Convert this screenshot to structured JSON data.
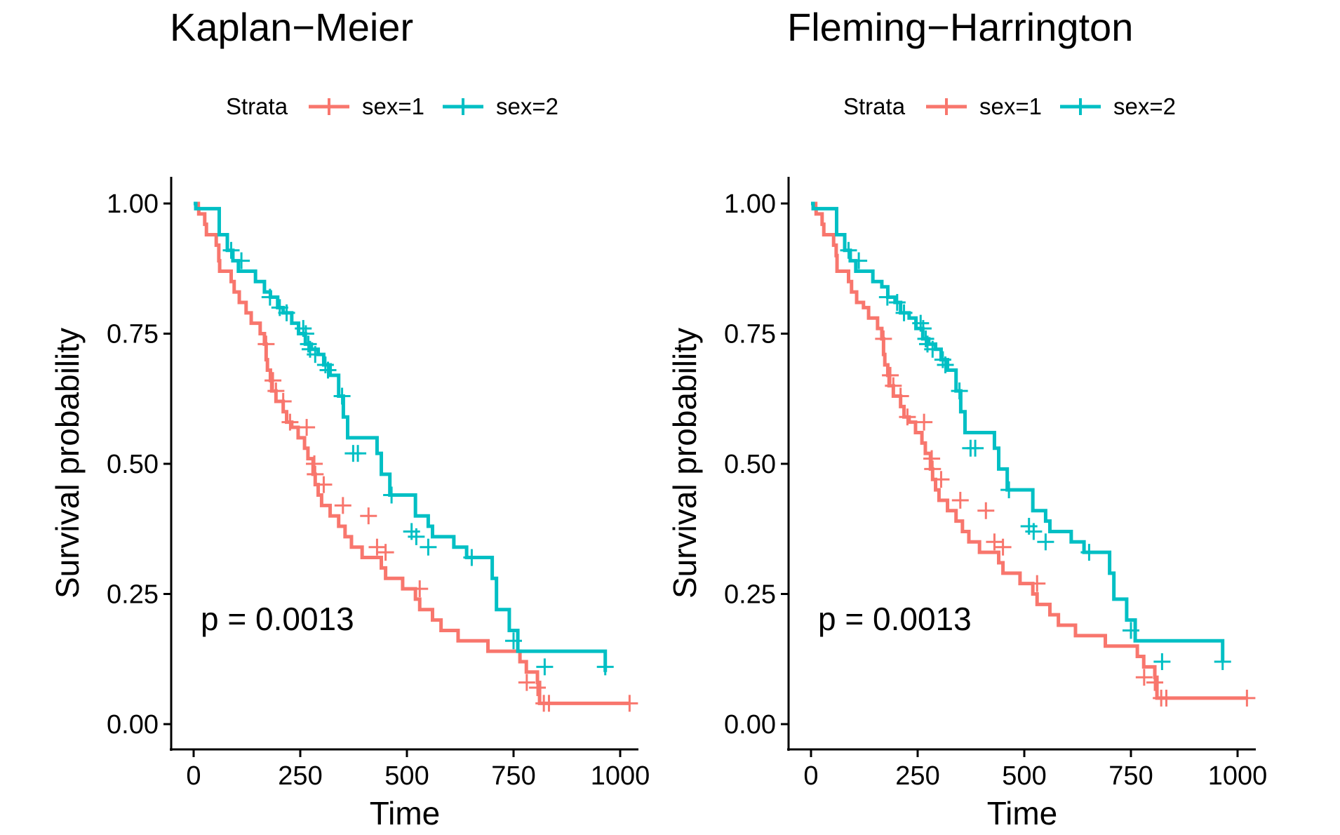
{
  "chart_data": [
    {
      "type": "line",
      "title": "Kaplan−Meier",
      "xlabel": "Time",
      "ylabel": "Survival probability",
      "xlim": [
        0,
        1022
      ],
      "ylim": [
        0,
        1
      ],
      "x_ticks": [
        "0",
        "250",
        "500",
        "750",
        "1000"
      ],
      "y_ticks": [
        "0.00",
        "0.25",
        "0.50",
        "0.75",
        "1.00"
      ],
      "legend": {
        "title": "Strata",
        "placement": "top"
      },
      "annotation": "p = 0.0013",
      "series": [
        {
          "name": "sex=1",
          "color": "#F8766D",
          "times": [
            11,
            12,
            26,
            30,
            53,
            59,
            61,
            88,
            95,
            107,
            123,
            135,
            156,
            166,
            170,
            173,
            180,
            183,
            193,
            210,
            218,
            230,
            245,
            260,
            268,
            280,
            285,
            292,
            300,
            320,
            340,
            355,
            370,
            395,
            440,
            450,
            490,
            520,
            530,
            560,
            580,
            620,
            690,
            765,
            780,
            806,
            811,
            1022
          ],
          "surv": [
            0.99,
            0.98,
            0.96,
            0.94,
            0.92,
            0.89,
            0.87,
            0.85,
            0.83,
            0.81,
            0.79,
            0.77,
            0.75,
            0.73,
            0.7,
            0.68,
            0.66,
            0.64,
            0.62,
            0.6,
            0.58,
            0.57,
            0.55,
            0.53,
            0.51,
            0.48,
            0.46,
            0.44,
            0.42,
            0.4,
            0.38,
            0.36,
            0.34,
            0.32,
            0.3,
            0.28,
            0.26,
            0.24,
            0.22,
            0.2,
            0.18,
            0.16,
            0.14,
            0.12,
            0.1,
            0.08,
            0.04,
            0.04
          ],
          "censored": [
            [
              170,
              0.73
            ],
            [
              186,
              0.66
            ],
            [
              193,
              0.64
            ],
            [
              210,
              0.62
            ],
            [
              226,
              0.58
            ],
            [
              265,
              0.57
            ],
            [
              283,
              0.5
            ],
            [
              285,
              0.48
            ],
            [
              305,
              0.46
            ],
            [
              350,
              0.42
            ],
            [
              410,
              0.4
            ],
            [
              430,
              0.34
            ],
            [
              450,
              0.33
            ],
            [
              530,
              0.26
            ],
            [
              781,
              0.08
            ],
            [
              806,
              0.07
            ],
            [
              821,
              0.04
            ],
            [
              833,
              0.04
            ],
            [
              1022,
              0.04
            ]
          ]
        },
        {
          "name": "sex=2",
          "color": "#00BFC4",
          "times": [
            5,
            60,
            79,
            92,
            105,
            145,
            166,
            180,
            197,
            210,
            230,
            246,
            262,
            276,
            292,
            305,
            320,
            340,
            351,
            361,
            430,
            440,
            460,
            520,
            550,
            560,
            610,
            640,
            700,
            710,
            740,
            760,
            965
          ],
          "surv": [
            0.99,
            0.94,
            0.91,
            0.89,
            0.87,
            0.85,
            0.83,
            0.82,
            0.8,
            0.79,
            0.77,
            0.75,
            0.73,
            0.72,
            0.71,
            0.69,
            0.67,
            0.63,
            0.59,
            0.55,
            0.52,
            0.48,
            0.44,
            0.4,
            0.38,
            0.36,
            0.34,
            0.32,
            0.28,
            0.22,
            0.18,
            0.14,
            0.1
          ],
          "censored": [
            [
              88,
              0.91
            ],
            [
              112,
              0.89
            ],
            [
              179,
              0.82
            ],
            [
              202,
              0.8
            ],
            [
              218,
              0.79
            ],
            [
              257,
              0.76
            ],
            [
              263,
              0.75
            ],
            [
              269,
              0.73
            ],
            [
              273,
              0.72
            ],
            [
              285,
              0.71
            ],
            [
              309,
              0.69
            ],
            [
              315,
              0.68
            ],
            [
              348,
              0.63
            ],
            [
              374,
              0.52
            ],
            [
              385,
              0.52
            ],
            [
              464,
              0.44
            ],
            [
              511,
              0.37
            ],
            [
              522,
              0.36
            ],
            [
              550,
              0.34
            ],
            [
              652,
              0.32
            ],
            [
              750,
              0.16
            ],
            [
              823,
              0.11
            ],
            [
              965,
              0.11
            ]
          ]
        }
      ]
    },
    {
      "type": "line",
      "title": "Fleming−Harrington",
      "xlabel": "Time",
      "ylabel": "Survival probability",
      "xlim": [
        0,
        1022
      ],
      "ylim": [
        0,
        1
      ],
      "x_ticks": [
        "0",
        "250",
        "500",
        "750",
        "1000"
      ],
      "y_ticks": [
        "0.00",
        "0.25",
        "0.50",
        "0.75",
        "1.00"
      ],
      "legend": {
        "title": "Strata",
        "placement": "top"
      },
      "annotation": "p = 0.0013",
      "series": [
        {
          "name": "sex=1",
          "color": "#F8766D",
          "times": [
            11,
            12,
            26,
            30,
            53,
            59,
            61,
            88,
            95,
            107,
            123,
            135,
            156,
            166,
            170,
            173,
            180,
            183,
            193,
            210,
            218,
            230,
            245,
            260,
            268,
            280,
            285,
            292,
            300,
            320,
            340,
            355,
            370,
            395,
            440,
            450,
            490,
            520,
            530,
            560,
            580,
            620,
            690,
            765,
            780,
            806,
            811,
            1022
          ],
          "surv": [
            0.99,
            0.98,
            0.96,
            0.94,
            0.92,
            0.9,
            0.87,
            0.85,
            0.83,
            0.81,
            0.8,
            0.78,
            0.76,
            0.74,
            0.71,
            0.69,
            0.67,
            0.65,
            0.63,
            0.61,
            0.59,
            0.58,
            0.56,
            0.54,
            0.52,
            0.49,
            0.47,
            0.45,
            0.43,
            0.41,
            0.39,
            0.37,
            0.35,
            0.33,
            0.31,
            0.29,
            0.27,
            0.25,
            0.23,
            0.21,
            0.19,
            0.17,
            0.15,
            0.13,
            0.11,
            0.09,
            0.05,
            0.05
          ],
          "censored": [
            [
              170,
              0.74
            ],
            [
              186,
              0.67
            ],
            [
              193,
              0.65
            ],
            [
              210,
              0.63
            ],
            [
              226,
              0.59
            ],
            [
              265,
              0.58
            ],
            [
              283,
              0.51
            ],
            [
              285,
              0.49
            ],
            [
              305,
              0.47
            ],
            [
              350,
              0.43
            ],
            [
              410,
              0.41
            ],
            [
              430,
              0.35
            ],
            [
              450,
              0.34
            ],
            [
              530,
              0.27
            ],
            [
              781,
              0.09
            ],
            [
              806,
              0.08
            ],
            [
              821,
              0.05
            ],
            [
              833,
              0.05
            ],
            [
              1022,
              0.05
            ]
          ]
        },
        {
          "name": "sex=2",
          "color": "#00BFC4",
          "times": [
            5,
            60,
            79,
            92,
            105,
            145,
            166,
            180,
            197,
            210,
            230,
            246,
            262,
            276,
            292,
            305,
            320,
            340,
            351,
            361,
            430,
            440,
            460,
            520,
            550,
            560,
            610,
            640,
            700,
            710,
            740,
            760,
            965
          ],
          "surv": [
            0.99,
            0.94,
            0.91,
            0.89,
            0.87,
            0.85,
            0.84,
            0.82,
            0.81,
            0.79,
            0.78,
            0.76,
            0.74,
            0.73,
            0.72,
            0.7,
            0.68,
            0.64,
            0.6,
            0.56,
            0.53,
            0.49,
            0.45,
            0.41,
            0.39,
            0.37,
            0.35,
            0.33,
            0.29,
            0.24,
            0.2,
            0.16,
            0.12
          ],
          "censored": [
            [
              88,
              0.91
            ],
            [
              112,
              0.89
            ],
            [
              179,
              0.82
            ],
            [
              202,
              0.81
            ],
            [
              218,
              0.79
            ],
            [
              257,
              0.77
            ],
            [
              263,
              0.76
            ],
            [
              269,
              0.74
            ],
            [
              273,
              0.73
            ],
            [
              285,
              0.72
            ],
            [
              309,
              0.7
            ],
            [
              315,
              0.69
            ],
            [
              348,
              0.64
            ],
            [
              374,
              0.53
            ],
            [
              385,
              0.53
            ],
            [
              464,
              0.45
            ],
            [
              511,
              0.38
            ],
            [
              522,
              0.37
            ],
            [
              550,
              0.35
            ],
            [
              652,
              0.33
            ],
            [
              750,
              0.18
            ],
            [
              823,
              0.12
            ],
            [
              965,
              0.12
            ]
          ]
        }
      ]
    }
  ]
}
